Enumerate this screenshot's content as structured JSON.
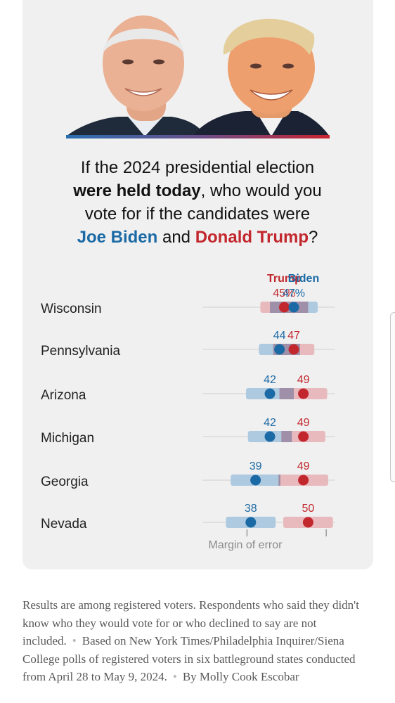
{
  "question": {
    "line1": "If the 2024 presidential election",
    "bold": "were held today",
    "line2_rest": ", who would you",
    "line3": "vote for if the candidates were",
    "biden_name": "Joe Biden",
    "and": "and",
    "trump_name": "Donald Trump",
    "qmark": "?"
  },
  "colors": {
    "biden": "#1b6aa5",
    "trump": "#c2272d",
    "biden_band": "#a9c7df",
    "trump_band": "#e7b6ba",
    "overlap_band": "#9f8fa8"
  },
  "chart_data": {
    "type": "scatter",
    "legend": [
      "Trump",
      "Biden"
    ],
    "x_range": [
      30,
      55
    ],
    "margin_of_error_label": "Margin of error",
    "states": [
      {
        "name": "Wisconsin",
        "trump": 45,
        "biden": 47,
        "trump_label": "45%",
        "biden_label": "47%",
        "trump_moe": 5,
        "biden_moe": 5
      },
      {
        "name": "Pennsylvania",
        "trump": 47,
        "biden": 44,
        "trump_label": "47",
        "biden_label": "44",
        "trump_moe": 4.3,
        "biden_moe": 4.3
      },
      {
        "name": "Arizona",
        "trump": 49,
        "biden": 42,
        "trump_label": "49",
        "biden_label": "42",
        "trump_moe": 5,
        "biden_moe": 5
      },
      {
        "name": "Michigan",
        "trump": 49,
        "biden": 42,
        "trump_label": "49",
        "biden_label": "42",
        "trump_moe": 4.6,
        "biden_moe": 4.6
      },
      {
        "name": "Georgia",
        "trump": 49,
        "biden": 39,
        "trump_label": "49",
        "biden_label": "39",
        "trump_moe": 5.2,
        "biden_moe": 5.2
      },
      {
        "name": "Nevada",
        "trump": 50,
        "biden": 38,
        "trump_label": "50",
        "biden_label": "38",
        "trump_moe": 5.2,
        "biden_moe": 5.2
      }
    ]
  },
  "footer": {
    "text1": "Results are among registered voters. Respondents who said they didn't know who they would vote for or who declined to say are not included.",
    "text2": "Based on New York Times/Philadelphia Inquirer/Siena College polls of registered voters in six battleground states conducted from April 28 to May 9, 2024.",
    "byline": "By Molly Cook Escobar"
  }
}
